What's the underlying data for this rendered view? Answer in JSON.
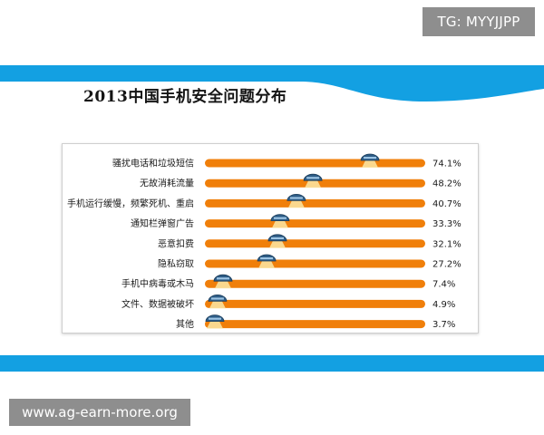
{
  "watermarks": {
    "tg": "TG: MYYJJPP",
    "site": "www.ag-earn-more.org"
  },
  "colors": {
    "band": "#13a0e2",
    "bar": "#f07f0a",
    "marker": "#2d5c86"
  },
  "chart_data": {
    "type": "bar",
    "orientation": "horizontal",
    "title": "2013中国手机安全问题分布",
    "categories": [
      "骚扰电话和垃圾短信",
      "无故消耗流量",
      "手机运行缓慢，频繁死机、重启",
      "通知栏弹窗广告",
      "恶意扣费",
      "隐私窃取",
      "手机中病毒或木马",
      "文件、数据被破坏",
      "其他"
    ],
    "values": [
      74.1,
      48.2,
      40.7,
      33.3,
      32.1,
      27.2,
      7.4,
      4.9,
      3.7
    ],
    "value_labels": [
      "74.1%",
      "48.2%",
      "40.7%",
      "33.3%",
      "32.1%",
      "27.2%",
      "7.4%",
      "4.9%",
      "3.7%"
    ],
    "unit": "%",
    "xlim": [
      0,
      100
    ],
    "grid": false,
    "legend": "none"
  }
}
